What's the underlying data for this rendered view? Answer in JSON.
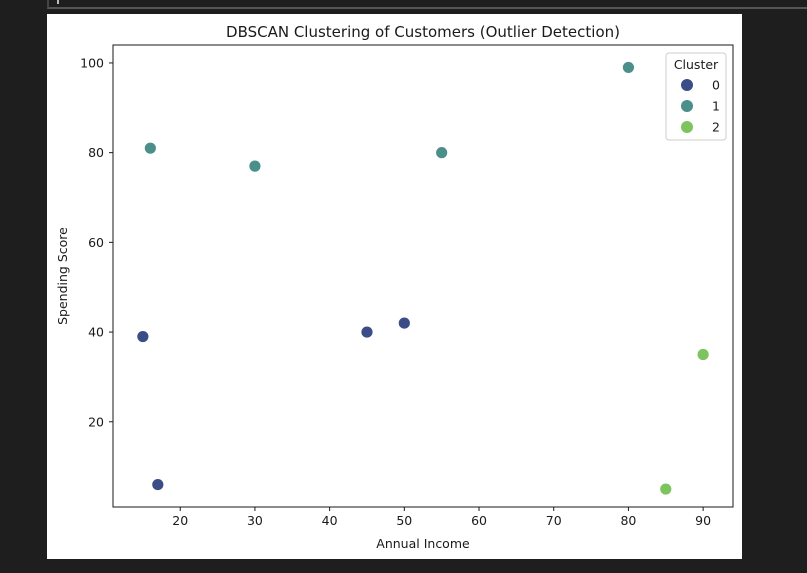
{
  "chart_data": {
    "type": "scatter",
    "title": "DBSCAN Clustering of Customers (Outlier Detection)",
    "xlabel": "Annual Income",
    "ylabel": "Spending Score",
    "xlim": [
      11,
      94
    ],
    "ylim": [
      1,
      104
    ],
    "x_ticks": [
      20,
      30,
      40,
      50,
      60,
      70,
      80,
      90
    ],
    "y_ticks": [
      20,
      40,
      60,
      80,
      100
    ],
    "grid": false,
    "legend": {
      "title": "Cluster",
      "placement": "top-right",
      "entries": [
        "0",
        "1",
        "2"
      ]
    },
    "series": [
      {
        "name": "0",
        "color": "#3b4d87",
        "points": [
          {
            "x": 15,
            "y": 39
          },
          {
            "x": 17,
            "y": 6
          },
          {
            "x": 45,
            "y": 40
          },
          {
            "x": 50,
            "y": 42
          }
        ]
      },
      {
        "name": "1",
        "color": "#4a8f89",
        "points": [
          {
            "x": 16,
            "y": 81
          },
          {
            "x": 30,
            "y": 77
          },
          {
            "x": 55,
            "y": 80
          },
          {
            "x": 80,
            "y": 99
          }
        ]
      },
      {
        "name": "2",
        "color": "#7dc35e",
        "points": [
          {
            "x": 85,
            "y": 5
          },
          {
            "x": 90,
            "y": 35
          }
        ]
      }
    ]
  }
}
